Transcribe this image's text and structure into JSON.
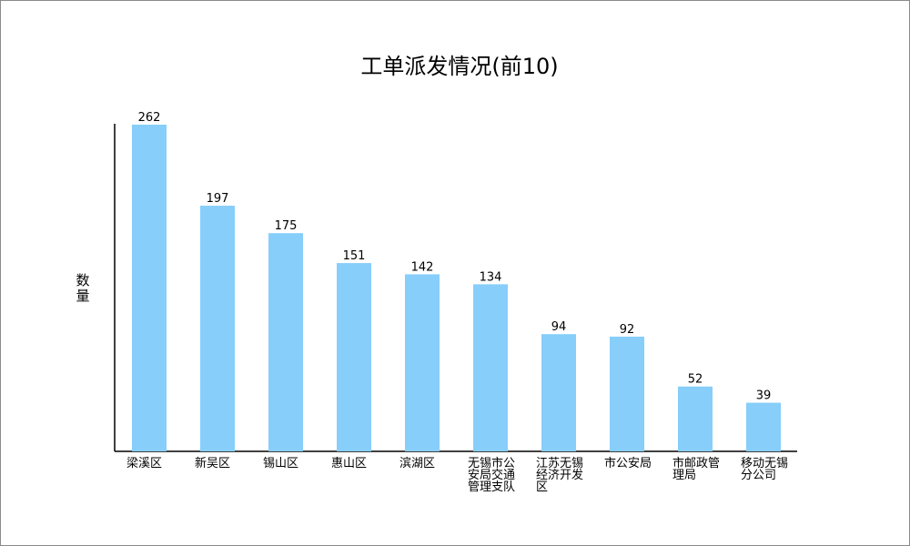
{
  "chart_data": {
    "type": "bar",
    "title": "工单派发情况(前10)",
    "xlabel": "",
    "ylabel": "数量",
    "categories": [
      "梁溪区",
      "新吴区",
      "锡山区",
      "惠山区",
      "滨湖区",
      "无锡市公安局交通管理支队",
      "江苏无锡经济开发区",
      "市公安局",
      "市邮政管理局",
      "移动无锡分公司"
    ],
    "values": [
      262,
      197,
      175,
      151,
      142,
      134,
      94,
      92,
      52,
      39
    ],
    "ylim": [
      0,
      262
    ],
    "grid": false,
    "legend": "none",
    "bar_color": "#87cefa",
    "axis_color": "#000000"
  }
}
